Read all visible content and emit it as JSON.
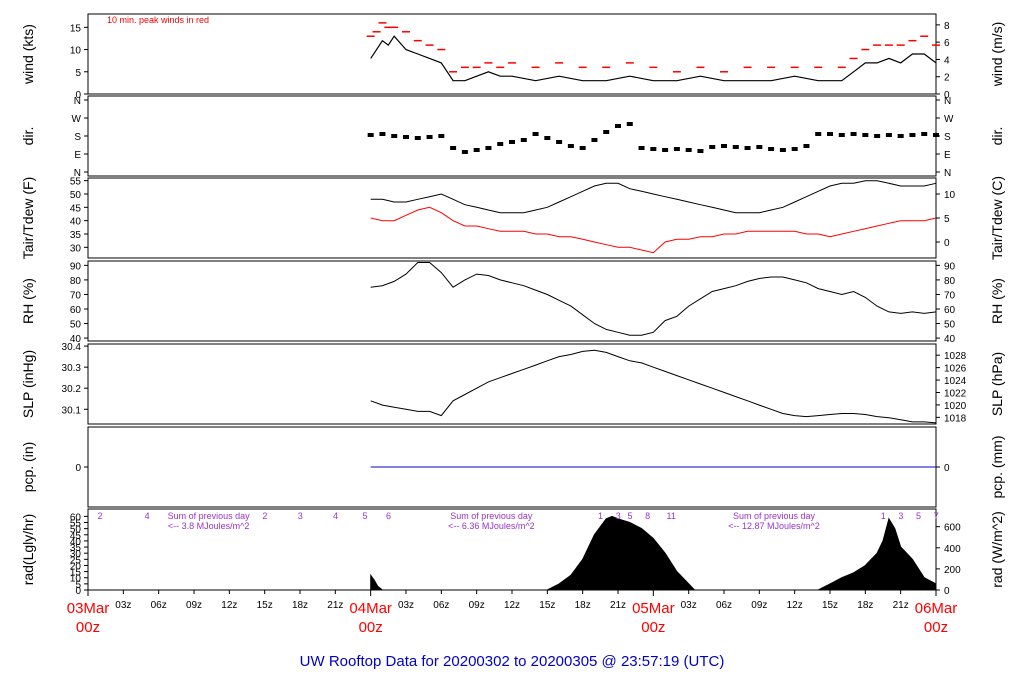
{
  "title": "UW Rooftop Data for 20200302  to  20200305 @ 23:57:19  (UTC)",
  "colors": {
    "peak": "#ff0000",
    "tdew": "#ff0000",
    "pcp": "#0000cc",
    "rad_text": "#9933cc",
    "date_text": "#ff0000",
    "title": "#0000cc",
    "line": "#000000"
  },
  "chart_data": [
    {
      "type": "line",
      "id": "wind",
      "ylabel_left": "wind (kts)",
      "ylabel_right": "wind (m/s)",
      "ylim": [
        0,
        18
      ],
      "left_ticks": [
        0,
        5,
        10,
        15
      ],
      "right_ticks": [
        0,
        2,
        4,
        6,
        8
      ],
      "annotation": "10 min. peak winds in red",
      "x_hours": [
        24,
        24.5,
        25,
        25.5,
        26,
        27,
        28,
        29,
        30,
        31,
        32,
        33,
        34,
        35,
        36,
        38,
        40,
        42,
        44,
        46,
        48,
        50,
        52,
        54,
        56,
        58,
        60,
        62,
        64,
        65,
        66,
        67,
        68,
        69,
        70,
        71,
        72
      ],
      "series": [
        {
          "name": "wind",
          "values": [
            8,
            10,
            12,
            11,
            13,
            10,
            9,
            8,
            7,
            3,
            3,
            4,
            5,
            4,
            4,
            3,
            4,
            3,
            3,
            4,
            3,
            3,
            4,
            3,
            3,
            3,
            4,
            3,
            3,
            5,
            7,
            7,
            8,
            7,
            9,
            9,
            7
          ]
        },
        {
          "name": "peak",
          "values": [
            13,
            14,
            16,
            15,
            15,
            14,
            12,
            11,
            10,
            5,
            6,
            6,
            7,
            6,
            7,
            6,
            7,
            6,
            6,
            7,
            6,
            5,
            6,
            5,
            6,
            6,
            6,
            6,
            6,
            8,
            10,
            11,
            11,
            11,
            12,
            13,
            11
          ]
        }
      ]
    },
    {
      "type": "scatter",
      "id": "dir",
      "ylabel_left": "dir.",
      "ylabel_right": "dir.",
      "tick_labels": [
        "N",
        "E",
        "S",
        "W",
        "N"
      ],
      "x_hours": [
        24,
        25,
        26,
        27,
        28,
        29,
        30,
        31,
        32,
        33,
        34,
        35,
        36,
        37,
        38,
        39,
        40,
        41,
        42,
        43,
        44,
        45,
        46,
        47,
        48,
        49,
        50,
        51,
        52,
        53,
        54,
        55,
        56,
        57,
        58,
        59,
        60,
        61,
        62,
        63,
        64,
        65,
        66,
        67,
        68,
        69,
        70,
        71,
        72
      ],
      "values": [
        185,
        190,
        180,
        175,
        170,
        175,
        180,
        120,
        100,
        110,
        120,
        140,
        150,
        160,
        190,
        170,
        150,
        130,
        120,
        160,
        200,
        230,
        240,
        120,
        115,
        110,
        115,
        110,
        105,
        125,
        130,
        125,
        120,
        125,
        115,
        110,
        115,
        130,
        190,
        190,
        185,
        190,
        185,
        180,
        185,
        180,
        185,
        190,
        185
      ]
    },
    {
      "type": "line",
      "id": "temp",
      "ylabel_left": "Tair/Tdew (F)",
      "ylabel_right": "Tair/Tdew (C)",
      "ylim": [
        26,
        56
      ],
      "left_ticks": [
        30,
        35,
        40,
        45,
        50,
        55
      ],
      "right_ticks": [
        0,
        5,
        10
      ],
      "x_hours": [
        24,
        25,
        26,
        27,
        28,
        29,
        30,
        31,
        32,
        33,
        34,
        35,
        36,
        37,
        38,
        39,
        40,
        41,
        42,
        43,
        44,
        45,
        46,
        47,
        48,
        49,
        50,
        51,
        52,
        53,
        54,
        55,
        56,
        57,
        58,
        59,
        60,
        61,
        62,
        63,
        64,
        65,
        66,
        67,
        68,
        69,
        70,
        71,
        72
      ],
      "series": [
        {
          "name": "Tair",
          "values": [
            48,
            48,
            47,
            47,
            48,
            49,
            50,
            48,
            46,
            45,
            44,
            43,
            43,
            43,
            44,
            45,
            47,
            49,
            51,
            53,
            54,
            54,
            52,
            51,
            50,
            49,
            48,
            47,
            46,
            45,
            44,
            43,
            43,
            43,
            44,
            45,
            47,
            49,
            51,
            53,
            54,
            54,
            55,
            55,
            54,
            53,
            53,
            53,
            54
          ]
        },
        {
          "name": "Tdew",
          "values": [
            41,
            40,
            40,
            42,
            44,
            45,
            43,
            40,
            38,
            38,
            37,
            36,
            36,
            36,
            35,
            35,
            34,
            34,
            33,
            32,
            31,
            30,
            30,
            29,
            28,
            32,
            33,
            33,
            34,
            34,
            35,
            35,
            36,
            36,
            36,
            36,
            36,
            35,
            35,
            34,
            35,
            36,
            37,
            38,
            39,
            40,
            40,
            40,
            41
          ]
        }
      ]
    },
    {
      "type": "line",
      "id": "rh",
      "ylabel_left": "RH (%)",
      "ylabel_right": "RH (%)",
      "ylim": [
        38,
        93
      ],
      "left_ticks": [
        40,
        50,
        60,
        70,
        80,
        90
      ],
      "right_ticks": [
        40,
        50,
        60,
        70,
        80,
        90
      ],
      "x_hours": [
        24,
        25,
        26,
        27,
        28,
        29,
        30,
        31,
        32,
        33,
        34,
        35,
        36,
        37,
        38,
        39,
        40,
        41,
        42,
        43,
        44,
        45,
        46,
        47,
        48,
        49,
        50,
        51,
        52,
        53,
        54,
        55,
        56,
        57,
        58,
        59,
        60,
        61,
        62,
        63,
        64,
        65,
        66,
        67,
        68,
        69,
        70,
        71,
        72
      ],
      "values": [
        75,
        76,
        79,
        84,
        92,
        92,
        85,
        75,
        80,
        84,
        83,
        80,
        78,
        76,
        73,
        70,
        66,
        62,
        56,
        50,
        46,
        44,
        42,
        42,
        44,
        52,
        55,
        62,
        67,
        72,
        74,
        76,
        79,
        81,
        82,
        82,
        80,
        78,
        74,
        72,
        70,
        72,
        68,
        62,
        58,
        57,
        58,
        57,
        58
      ]
    },
    {
      "type": "line",
      "id": "slp",
      "ylabel_left": "SLP (inHg)",
      "ylabel_right": "SLP (hPa)",
      "ylim": [
        30.03,
        30.41
      ],
      "left_ticks": [
        30.1,
        30.2,
        30.3,
        30.4
      ],
      "right_ticks": [
        1018,
        1020,
        1022,
        1024,
        1026,
        1028
      ],
      "x_hours": [
        24,
        25,
        26,
        27,
        28,
        29,
        30,
        31,
        32,
        33,
        34,
        35,
        36,
        37,
        38,
        39,
        40,
        41,
        42,
        43,
        44,
        45,
        46,
        47,
        48,
        49,
        50,
        51,
        52,
        53,
        54,
        55,
        56,
        57,
        58,
        59,
        60,
        61,
        62,
        63,
        64,
        65,
        66,
        67,
        68,
        69,
        70,
        71,
        72
      ],
      "values": [
        30.14,
        30.12,
        30.11,
        30.1,
        30.09,
        30.09,
        30.07,
        30.14,
        30.17,
        30.2,
        30.23,
        30.25,
        30.27,
        30.29,
        30.31,
        30.33,
        30.35,
        30.36,
        30.375,
        30.38,
        30.37,
        30.35,
        30.33,
        30.32,
        30.3,
        30.28,
        30.26,
        30.24,
        30.22,
        30.2,
        30.18,
        30.16,
        30.14,
        30.12,
        30.1,
        30.08,
        30.07,
        30.065,
        30.07,
        30.075,
        30.08,
        30.08,
        30.075,
        30.065,
        30.06,
        30.05,
        30.04,
        30.04,
        30.035
      ]
    },
    {
      "type": "line",
      "id": "pcp",
      "ylabel_left": "pcp. (in)",
      "ylabel_right": "pcp. (mm)",
      "left_ticks": [
        0
      ],
      "right_ticks": [
        0
      ],
      "x_hours": [
        24,
        72
      ],
      "values": [
        0,
        0
      ]
    },
    {
      "type": "area",
      "id": "rad",
      "ylabel_left": "rad(Lgly/hr)",
      "ylabel_right": "rad (W/m^2)",
      "ylim": [
        0,
        66
      ],
      "left_ticks": [
        0,
        5,
        10,
        15,
        20,
        25,
        30,
        35,
        40,
        45,
        50,
        55,
        60
      ],
      "right_ticks": [
        0,
        200,
        400,
        600
      ],
      "x_hours": [
        24,
        24.3,
        24.6,
        25,
        39,
        40,
        41,
        42,
        43,
        44,
        44.5,
        45,
        46,
        47,
        48,
        49,
        50,
        51,
        51.5,
        52,
        62,
        63,
        64,
        65,
        66,
        67,
        67.5,
        68,
        68.5,
        69,
        70,
        71,
        72
      ],
      "values": [
        12,
        8,
        3,
        0,
        0,
        5,
        12,
        25,
        45,
        58,
        60,
        58,
        55,
        50,
        42,
        30,
        15,
        5,
        0,
        0,
        0,
        5,
        10,
        14,
        20,
        30,
        40,
        58,
        50,
        35,
        25,
        10,
        5
      ],
      "annotations": [
        {
          "text": "Sum of previous day",
          "x": 6
        },
        {
          "text": "<-- 3.8 MJoules/m^2",
          "x": 6
        },
        {
          "text": "Sum of previous day",
          "x": 30
        },
        {
          "text": "<-- 6.36 MJoules/m^2",
          "x": 30
        },
        {
          "text": "Sum of previous day",
          "x": 54
        },
        {
          "text": "<-- 12.87 MJoules/m^2",
          "x": 54
        }
      ],
      "hour_markers": [
        {
          "x": 0,
          "text": "2"
        },
        {
          "x": 4,
          "text": "4"
        },
        {
          "x": 14,
          "text": "2"
        },
        {
          "x": 17,
          "text": "3"
        },
        {
          "x": 20,
          "text": "4"
        },
        {
          "x": 22.5,
          "text": "5"
        },
        {
          "x": 24.5,
          "text": "6"
        },
        {
          "x": 42.5,
          "text": "1"
        },
        {
          "x": 44,
          "text": "3"
        },
        {
          "x": 45,
          "text": "5"
        },
        {
          "x": 46.5,
          "text": "8"
        },
        {
          "x": 48.5,
          "text": "11"
        },
        {
          "x": 66.5,
          "text": "1"
        },
        {
          "x": 68,
          "text": "3"
        },
        {
          "x": 69.5,
          "text": "5"
        },
        {
          "x": 71,
          "text": "7"
        }
      ]
    }
  ],
  "x_axis": {
    "ticks": [
      {
        "h": 3,
        "label": "03z"
      },
      {
        "h": 6,
        "label": "06z"
      },
      {
        "h": 9,
        "label": "09z"
      },
      {
        "h": 12,
        "label": "12z"
      },
      {
        "h": 15,
        "label": "15z"
      },
      {
        "h": 18,
        "label": "18z"
      },
      {
        "h": 21,
        "label": "21z"
      },
      {
        "h": 27,
        "label": "03z"
      },
      {
        "h": 30,
        "label": "06z"
      },
      {
        "h": 33,
        "label": "09z"
      },
      {
        "h": 36,
        "label": "12z"
      },
      {
        "h": 39,
        "label": "15z"
      },
      {
        "h": 42,
        "label": "18z"
      },
      {
        "h": 45,
        "label": "21z"
      },
      {
        "h": 51,
        "label": "03z"
      },
      {
        "h": 54,
        "label": "06z"
      },
      {
        "h": 57,
        "label": "09z"
      },
      {
        "h": 60,
        "label": "12z"
      },
      {
        "h": 63,
        "label": "15z"
      },
      {
        "h": 66,
        "label": "18z"
      },
      {
        "h": 69,
        "label": "21z"
      }
    ],
    "dates": [
      {
        "h": 0,
        "date": "03Mar",
        "time": "00z"
      },
      {
        "h": 24,
        "date": "04Mar",
        "time": "00z"
      },
      {
        "h": 48,
        "date": "05Mar",
        "time": "00z"
      },
      {
        "h": 72,
        "date": "06Mar",
        "time": "00z"
      }
    ]
  }
}
